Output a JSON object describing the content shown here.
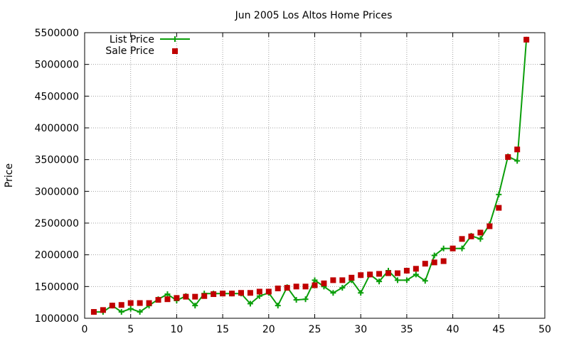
{
  "chart_data": {
    "type": "line",
    "title": "Jun 2005 Los Altos Home Prices",
    "xlabel": "",
    "ylabel": "Price",
    "xlim": [
      0,
      50
    ],
    "ylim": [
      1000000,
      5500000
    ],
    "xticks": [
      0,
      5,
      10,
      15,
      20,
      25,
      30,
      35,
      40,
      45,
      50
    ],
    "yticks": [
      1000000,
      1500000,
      2000000,
      2500000,
      3000000,
      3500000,
      4000000,
      4500000,
      5000000,
      5500000
    ],
    "grid": true,
    "legend": "top-left",
    "series": [
      {
        "name": "List Price",
        "style": "line+cross",
        "color": "#0a9e0a",
        "x": [
          1,
          2,
          3,
          4,
          5,
          6,
          7,
          8,
          9,
          10,
          11,
          12,
          13,
          14,
          15,
          16,
          17,
          18,
          19,
          20,
          21,
          22,
          23,
          24,
          25,
          26,
          27,
          28,
          29,
          30,
          31,
          32,
          33,
          34,
          35,
          36,
          37,
          38,
          39,
          40,
          41,
          42,
          43,
          44,
          45,
          46,
          47,
          48
        ],
        "values": [
          1100000,
          1100000,
          1200000,
          1100000,
          1150000,
          1100000,
          1200000,
          1300000,
          1380000,
          1280000,
          1350000,
          1200000,
          1390000,
          1390000,
          1390000,
          1390000,
          1390000,
          1230000,
          1350000,
          1400000,
          1200000,
          1490000,
          1290000,
          1300000,
          1600000,
          1500000,
          1400000,
          1480000,
          1600000,
          1400000,
          1690000,
          1580000,
          1750000,
          1600000,
          1600000,
          1690000,
          1590000,
          1990000,
          2100000,
          2100000,
          2100000,
          2300000,
          2250000,
          2480000,
          2950000,
          3550000,
          3480000,
          5390000
        ]
      },
      {
        "name": "Sale Price",
        "style": "square",
        "color": "#c00000",
        "x": [
          1,
          2,
          3,
          4,
          5,
          6,
          7,
          8,
          9,
          10,
          11,
          12,
          13,
          14,
          15,
          16,
          17,
          18,
          19,
          20,
          21,
          22,
          23,
          24,
          25,
          26,
          27,
          28,
          29,
          30,
          31,
          32,
          33,
          34,
          35,
          36,
          37,
          38,
          39,
          40,
          41,
          42,
          43,
          44,
          45,
          46,
          47,
          48
        ],
        "values": [
          1100000,
          1130000,
          1200000,
          1210000,
          1240000,
          1240000,
          1240000,
          1290000,
          1300000,
          1320000,
          1340000,
          1340000,
          1350000,
          1380000,
          1390000,
          1390000,
          1400000,
          1400000,
          1420000,
          1420000,
          1470000,
          1480000,
          1500000,
          1500000,
          1520000,
          1550000,
          1600000,
          1600000,
          1640000,
          1680000,
          1690000,
          1700000,
          1710000,
          1710000,
          1750000,
          1780000,
          1860000,
          1880000,
          1900000,
          2100000,
          2250000,
          2290000,
          2350000,
          2450000,
          2740000,
          3540000,
          3660000,
          5390000
        ]
      }
    ]
  }
}
